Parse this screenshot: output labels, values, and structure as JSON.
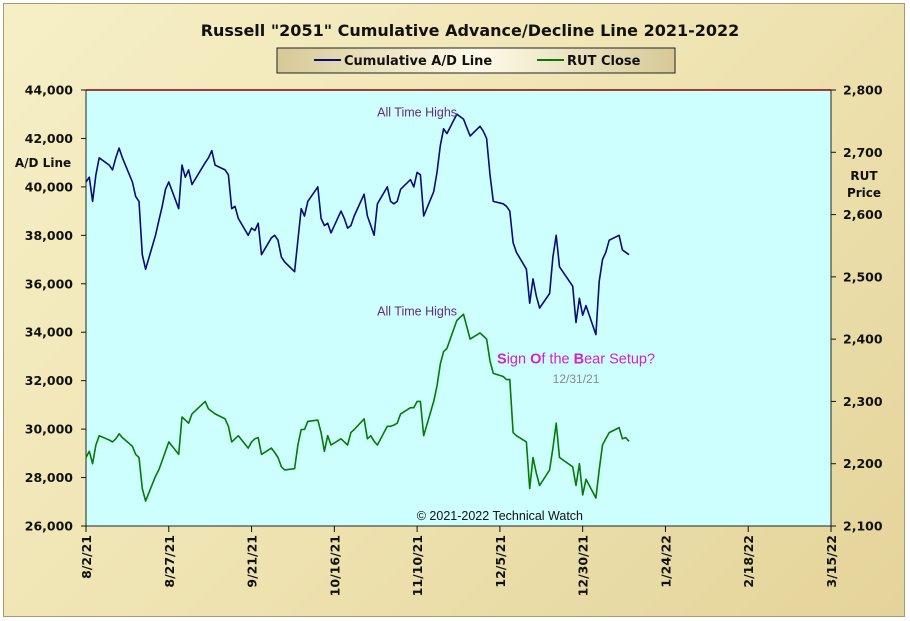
{
  "chart_data": {
    "type": "line",
    "title": "Russell \"2051\" Cumulative Advance/Decline Line 2021-2022",
    "y_left_label": [
      "A/D Line"
    ],
    "y_right_label": [
      "RUT",
      "Price"
    ],
    "y_left_range": [
      26000,
      44000
    ],
    "y_right_range": [
      2100,
      2800
    ],
    "y_left_ticks": [
      "26,000",
      "28,000",
      "30,000",
      "32,000",
      "34,000",
      "36,000",
      "38,000",
      "40,000",
      "42,000",
      "44,000"
    ],
    "y_right_ticks": [
      "2,100",
      "2,200",
      "2,300",
      "2,400",
      "2,500",
      "2,600",
      "2,700",
      "2,800"
    ],
    "x_tick_labels": [
      "8/2/21",
      "8/27/21",
      "9/21/21",
      "10/16/21",
      "11/10/21",
      "12/5/21",
      "12/30/21",
      "1/24/22",
      "2/18/22",
      "3/15/22"
    ],
    "x_start": "2021-08-02",
    "x_end": "2022-03-15",
    "grid": false,
    "legend_position": "top",
    "legend": [
      {
        "label": "Cumulative A/D Line",
        "color": "#0a0a78"
      },
      {
        "label": "RUT Close",
        "color": "#067a06"
      }
    ],
    "series": [
      {
        "name": "Cumulative A/D Line",
        "axis": "left",
        "color": "#0a0a78",
        "points": [
          [
            "2021-08-02",
            40200
          ],
          [
            "2021-08-03",
            40400
          ],
          [
            "2021-08-04",
            39400
          ],
          [
            "2021-08-05",
            40500
          ],
          [
            "2021-08-06",
            41200
          ],
          [
            "2021-08-09",
            40900
          ],
          [
            "2021-08-10",
            40700
          ],
          [
            "2021-08-11",
            41200
          ],
          [
            "2021-08-12",
            41600
          ],
          [
            "2021-08-13",
            41200
          ],
          [
            "2021-08-16",
            40200
          ],
          [
            "2021-08-17",
            39600
          ],
          [
            "2021-08-18",
            39400
          ],
          [
            "2021-08-19",
            37200
          ],
          [
            "2021-08-20",
            36600
          ],
          [
            "2021-08-23",
            38000
          ],
          [
            "2021-08-24",
            38600
          ],
          [
            "2021-08-25",
            39200
          ],
          [
            "2021-08-26",
            39900
          ],
          [
            "2021-08-27",
            40200
          ],
          [
            "2021-08-30",
            39100
          ],
          [
            "2021-08-31",
            40900
          ],
          [
            "2021-09-01",
            40400
          ],
          [
            "2021-09-02",
            40700
          ],
          [
            "2021-09-03",
            40100
          ],
          [
            "2021-09-07",
            41000
          ],
          [
            "2021-09-08",
            41200
          ],
          [
            "2021-09-09",
            41500
          ],
          [
            "2021-09-10",
            40900
          ],
          [
            "2021-09-13",
            40700
          ],
          [
            "2021-09-14",
            40500
          ],
          [
            "2021-09-15",
            39100
          ],
          [
            "2021-09-16",
            39200
          ],
          [
            "2021-09-17",
            38700
          ],
          [
            "2021-09-20",
            38000
          ],
          [
            "2021-09-21",
            38300
          ],
          [
            "2021-09-22",
            38200
          ],
          [
            "2021-09-23",
            38500
          ],
          [
            "2021-09-24",
            37200
          ],
          [
            "2021-09-27",
            37900
          ],
          [
            "2021-09-28",
            38000
          ],
          [
            "2021-09-29",
            37800
          ],
          [
            "2021-09-30",
            37100
          ],
          [
            "2021-10-01",
            36900
          ],
          [
            "2021-10-04",
            36500
          ],
          [
            "2021-10-05",
            37800
          ],
          [
            "2021-10-06",
            39100
          ],
          [
            "2021-10-07",
            38800
          ],
          [
            "2021-10-08",
            39400
          ],
          [
            "2021-10-11",
            40000
          ],
          [
            "2021-10-12",
            38700
          ],
          [
            "2021-10-13",
            38400
          ],
          [
            "2021-10-14",
            38500
          ],
          [
            "2021-10-15",
            38100
          ],
          [
            "2021-10-18",
            39000
          ],
          [
            "2021-10-19",
            38700
          ],
          [
            "2021-10-20",
            38300
          ],
          [
            "2021-10-21",
            38400
          ],
          [
            "2021-10-22",
            38800
          ],
          [
            "2021-10-25",
            39700
          ],
          [
            "2021-10-26",
            38800
          ],
          [
            "2021-10-27",
            38400
          ],
          [
            "2021-10-28",
            38000
          ],
          [
            "2021-10-29",
            39300
          ],
          [
            "2021-11-01",
            40000
          ],
          [
            "2021-11-02",
            39400
          ],
          [
            "2021-11-03",
            39300
          ],
          [
            "2021-11-04",
            39400
          ],
          [
            "2021-11-05",
            39900
          ],
          [
            "2021-11-08",
            40300
          ],
          [
            "2021-11-09",
            40000
          ],
          [
            "2021-11-10",
            40600
          ],
          [
            "2021-11-11",
            40500
          ],
          [
            "2021-11-12",
            38800
          ],
          [
            "2021-11-15",
            39800
          ],
          [
            "2021-11-16",
            40600
          ],
          [
            "2021-11-17",
            41700
          ],
          [
            "2021-11-18",
            42400
          ],
          [
            "2021-11-19",
            42200
          ],
          [
            "2021-11-22",
            43000
          ],
          [
            "2021-11-23",
            42900
          ],
          [
            "2021-11-24",
            42800
          ],
          [
            "2021-11-26",
            42100
          ],
          [
            "2021-11-29",
            42500
          ],
          [
            "2021-11-30",
            42300
          ],
          [
            "2021-12-01",
            42000
          ],
          [
            "2021-12-02",
            40500
          ],
          [
            "2021-12-03",
            39400
          ],
          [
            "2021-12-06",
            39300
          ],
          [
            "2021-12-07",
            39200
          ],
          [
            "2021-12-08",
            39000
          ],
          [
            "2021-12-09",
            37700
          ],
          [
            "2021-12-10",
            37300
          ],
          [
            "2021-12-13",
            36600
          ],
          [
            "2021-12-14",
            35200
          ],
          [
            "2021-12-15",
            36200
          ],
          [
            "2021-12-16",
            35500
          ],
          [
            "2021-12-17",
            35000
          ],
          [
            "2021-12-20",
            35600
          ],
          [
            "2021-12-21",
            37100
          ],
          [
            "2021-12-22",
            38000
          ],
          [
            "2021-12-23",
            36700
          ],
          [
            "2021-12-27",
            35900
          ],
          [
            "2021-12-28",
            34400
          ],
          [
            "2021-12-29",
            35400
          ],
          [
            "2021-12-30",
            34700
          ],
          [
            "2021-12-31",
            35100
          ],
          [
            "2022-01-03",
            33900
          ],
          [
            "2022-01-04",
            36100
          ],
          [
            "2022-01-05",
            37000
          ],
          [
            "2022-01-06",
            37300
          ],
          [
            "2022-01-07",
            37800
          ],
          [
            "2022-01-10",
            38000
          ],
          [
            "2022-01-11",
            37400
          ],
          [
            "2022-01-12",
            37300
          ],
          [
            "2022-01-13",
            37200
          ]
        ]
      },
      {
        "name": "RUT Close",
        "axis": "right",
        "color": "#067a06",
        "points": [
          [
            "2021-08-02",
            2210
          ],
          [
            "2021-08-03",
            2220
          ],
          [
            "2021-08-04",
            2200
          ],
          [
            "2021-08-05",
            2230
          ],
          [
            "2021-08-06",
            2245
          ],
          [
            "2021-08-09",
            2238
          ],
          [
            "2021-08-10",
            2235
          ],
          [
            "2021-08-11",
            2240
          ],
          [
            "2021-08-12",
            2248
          ],
          [
            "2021-08-13",
            2242
          ],
          [
            "2021-08-16",
            2228
          ],
          [
            "2021-08-17",
            2215
          ],
          [
            "2021-08-18",
            2210
          ],
          [
            "2021-08-19",
            2160
          ],
          [
            "2021-08-20",
            2140
          ],
          [
            "2021-08-23",
            2180
          ],
          [
            "2021-08-24",
            2190
          ],
          [
            "2021-08-25",
            2205
          ],
          [
            "2021-08-26",
            2220
          ],
          [
            "2021-08-27",
            2235
          ],
          [
            "2021-08-30",
            2215
          ],
          [
            "2021-08-31",
            2275
          ],
          [
            "2021-09-01",
            2270
          ],
          [
            "2021-09-02",
            2265
          ],
          [
            "2021-09-03",
            2280
          ],
          [
            "2021-09-07",
            2300
          ],
          [
            "2021-09-08",
            2288
          ],
          [
            "2021-09-09",
            2284
          ],
          [
            "2021-09-10",
            2280
          ],
          [
            "2021-09-13",
            2272
          ],
          [
            "2021-09-14",
            2260
          ],
          [
            "2021-09-15",
            2235
          ],
          [
            "2021-09-16",
            2240
          ],
          [
            "2021-09-17",
            2245
          ],
          [
            "2021-09-20",
            2225
          ],
          [
            "2021-09-21",
            2235
          ],
          [
            "2021-09-22",
            2240
          ],
          [
            "2021-09-23",
            2242
          ],
          [
            "2021-09-24",
            2215
          ],
          [
            "2021-09-27",
            2225
          ],
          [
            "2021-09-28",
            2218
          ],
          [
            "2021-09-29",
            2210
          ],
          [
            "2021-09-30",
            2195
          ],
          [
            "2021-10-01",
            2190
          ],
          [
            "2021-10-04",
            2192
          ],
          [
            "2021-10-05",
            2230
          ],
          [
            "2021-10-06",
            2255
          ],
          [
            "2021-10-07",
            2255
          ],
          [
            "2021-10-08",
            2268
          ],
          [
            "2021-10-11",
            2270
          ],
          [
            "2021-10-12",
            2250
          ],
          [
            "2021-10-13",
            2220
          ],
          [
            "2021-10-14",
            2245
          ],
          [
            "2021-10-15",
            2230
          ],
          [
            "2021-10-18",
            2240
          ],
          [
            "2021-10-19",
            2235
          ],
          [
            "2021-10-20",
            2230
          ],
          [
            "2021-10-21",
            2250
          ],
          [
            "2021-10-22",
            2255
          ],
          [
            "2021-10-25",
            2272
          ],
          [
            "2021-10-26",
            2240
          ],
          [
            "2021-10-27",
            2245
          ],
          [
            "2021-10-28",
            2236
          ],
          [
            "2021-10-29",
            2230
          ],
          [
            "2021-11-01",
            2260
          ],
          [
            "2021-11-02",
            2260
          ],
          [
            "2021-11-03",
            2262
          ],
          [
            "2021-11-04",
            2265
          ],
          [
            "2021-11-05",
            2280
          ],
          [
            "2021-11-08",
            2290
          ],
          [
            "2021-11-09",
            2290
          ],
          [
            "2021-11-10",
            2300
          ],
          [
            "2021-11-11",
            2300
          ],
          [
            "2021-11-12",
            2245
          ],
          [
            "2021-11-15",
            2300
          ],
          [
            "2021-11-16",
            2325
          ],
          [
            "2021-11-17",
            2360
          ],
          [
            "2021-11-18",
            2380
          ],
          [
            "2021-11-19",
            2385
          ],
          [
            "2021-11-22",
            2430
          ],
          [
            "2021-11-23",
            2435
          ],
          [
            "2021-11-24",
            2440
          ],
          [
            "2021-11-26",
            2400
          ],
          [
            "2021-11-29",
            2410
          ],
          [
            "2021-11-30",
            2405
          ],
          [
            "2021-12-01",
            2400
          ],
          [
            "2021-12-02",
            2365
          ],
          [
            "2021-12-03",
            2345
          ],
          [
            "2021-12-06",
            2340
          ],
          [
            "2021-12-07",
            2335
          ],
          [
            "2021-12-08",
            2335
          ],
          [
            "2021-12-09",
            2250
          ],
          [
            "2021-12-10",
            2245
          ],
          [
            "2021-12-13",
            2235
          ],
          [
            "2021-12-14",
            2160
          ],
          [
            "2021-12-15",
            2210
          ],
          [
            "2021-12-16",
            2185
          ],
          [
            "2021-12-17",
            2165
          ],
          [
            "2021-12-20",
            2190
          ],
          [
            "2021-12-21",
            2225
          ],
          [
            "2021-12-22",
            2265
          ],
          [
            "2021-12-23",
            2210
          ],
          [
            "2021-12-27",
            2195
          ],
          [
            "2021-12-28",
            2165
          ],
          [
            "2021-12-29",
            2200
          ],
          [
            "2021-12-30",
            2150
          ],
          [
            "2021-12-31",
            2175
          ],
          [
            "2022-01-03",
            2145
          ],
          [
            "2022-01-04",
            2190
          ],
          [
            "2022-01-05",
            2230
          ],
          [
            "2022-01-06",
            2240
          ],
          [
            "2022-01-07",
            2250
          ],
          [
            "2022-01-10",
            2258
          ],
          [
            "2022-01-11",
            2240
          ],
          [
            "2022-01-12",
            2242
          ],
          [
            "2022-01-13",
            2236
          ]
        ]
      }
    ],
    "annotations": [
      {
        "text": "All Time Highs",
        "x": "2021-11-10",
        "y": 42900,
        "axis": "left",
        "style": "purple"
      },
      {
        "text": "All Time Highs",
        "x": "2021-11-10",
        "y": 34700,
        "axis": "left",
        "style": "purple"
      },
      {
        "text": "12/31/21",
        "x": "2021-12-28",
        "y": 31900,
        "axis": "left",
        "style": "gray"
      },
      {
        "text": "© 2021-2022  Technical Watch",
        "x": "2021-12-05",
        "y": 26250,
        "axis": "left",
        "style": "copyright"
      }
    ],
    "setup_note": [
      {
        "text": "S",
        "bold": true
      },
      {
        "text": "ign ",
        "bold": false
      },
      {
        "text": "O",
        "bold": true
      },
      {
        "text": "f the ",
        "bold": false
      },
      {
        "text": "B",
        "bold": true
      },
      {
        "text": "ear Setup?",
        "bold": false
      }
    ],
    "setup_note_position": {
      "x": "2021-12-28",
      "y": 32700
    }
  }
}
